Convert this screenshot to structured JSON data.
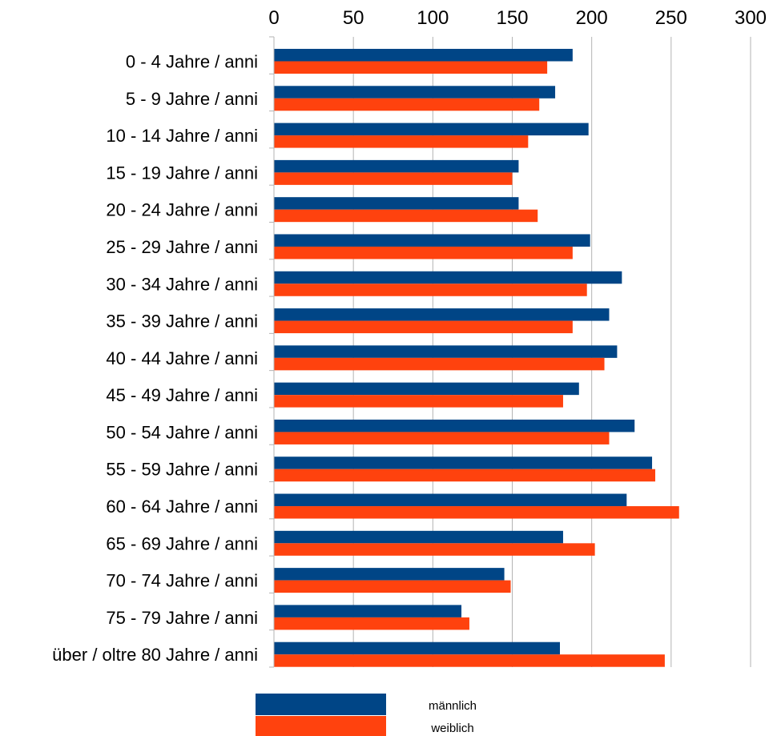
{
  "chart_data": {
    "type": "bar",
    "orientation": "horizontal",
    "xlim": [
      0,
      300
    ],
    "x_ticks": [
      "0",
      "50",
      "100",
      "150",
      "200",
      "250",
      "300"
    ],
    "x_axis_position": "top",
    "grid": true,
    "legend_position": "bottom",
    "categories": [
      "0 - 4 Jahre / anni",
      "5 - 9 Jahre / anni",
      "10 - 14 Jahre / anni",
      "15 -  19 Jahre / anni",
      "20 - 24 Jahre / anni",
      "25 - 29 Jahre / anni",
      "30 - 34 Jahre / anni",
      "35 - 39 Jahre / anni",
      "40 - 44 Jahre / anni",
      "45 - 49 Jahre / anni",
      "50 - 54 Jahre / anni",
      "55 - 59 Jahre / anni",
      "60 - 64 Jahre / anni",
      "65 - 69 Jahre / anni",
      "70 - 74 Jahre / anni",
      "75 - 79 Jahre / anni",
      "über / oltre 80 Jahre / anni"
    ],
    "series": [
      {
        "name": "männlich",
        "color": "#004586",
        "values": [
          188,
          177,
          198,
          154,
          154,
          199,
          219,
          211,
          216,
          192,
          227,
          238,
          222,
          182,
          145,
          118,
          180
        ]
      },
      {
        "name": "weiblich",
        "color": "#ff420e",
        "values": [
          172,
          167,
          160,
          150,
          166,
          188,
          197,
          188,
          208,
          182,
          211,
          240,
          255,
          202,
          149,
          123,
          246
        ]
      }
    ]
  }
}
